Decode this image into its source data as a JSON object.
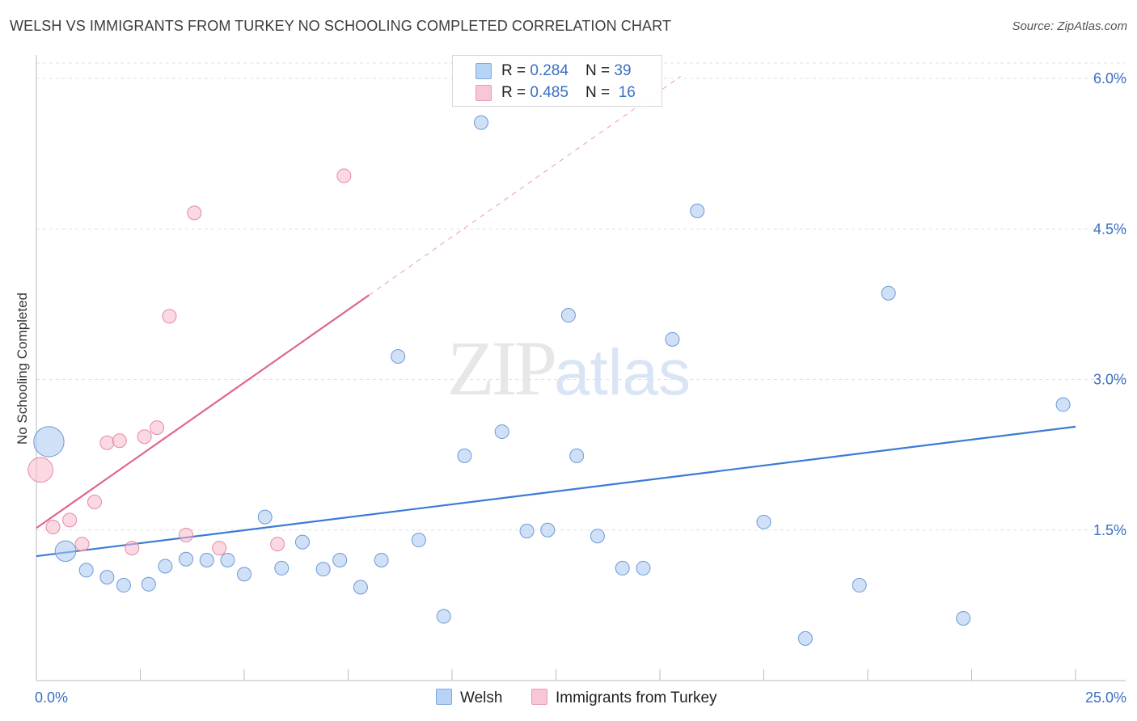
{
  "title": "WELSH VS IMMIGRANTS FROM TURKEY NO SCHOOLING COMPLETED CORRELATION CHART",
  "source": "Source: ZipAtlas.com",
  "watermark": {
    "zip": "ZIP",
    "atlas": "atlas"
  },
  "chart_data": {
    "type": "scatter",
    "title": "WELSH VS IMMIGRANTS FROM TURKEY NO SCHOOLING COMPLETED CORRELATION CHART",
    "ylabel": "No Schooling Completed",
    "xlabel": "",
    "xlim": [
      0,
      25
    ],
    "ylim": [
      0,
      6.2
    ],
    "x_tick_labels": [
      {
        "value": 0,
        "label": "0.0%"
      },
      {
        "value": 25,
        "label": "25.0%"
      }
    ],
    "y_tick_labels": [
      {
        "value": 1.5,
        "label": "1.5%"
      },
      {
        "value": 3.0,
        "label": "3.0%"
      },
      {
        "value": 4.5,
        "label": "4.5%"
      },
      {
        "value": 6.0,
        "label": "6.0%"
      }
    ],
    "grid": true,
    "legend": [
      {
        "name": "Welsh",
        "color": "#a9c8f0",
        "stroke": "#6a9ad8",
        "R": "0.284",
        "N": "39"
      },
      {
        "name": "Immigrants from Turkey",
        "color": "#f7b9cc",
        "stroke": "#e48aa6",
        "R": "0.485",
        "N": "16"
      }
    ],
    "series": [
      {
        "name": "Welsh",
        "color": "#a9c8f0",
        "stroke": "#6a9ad8",
        "trend": {
          "x0": 0,
          "y0": 1.24,
          "x1": 25,
          "y1": 2.53,
          "color": "#3a7bd5"
        },
        "points": [
          {
            "x": 0.3,
            "y": 2.38,
            "s": 2.2
          },
          {
            "x": 0.7,
            "y": 1.29,
            "s": 1.5
          },
          {
            "x": 1.2,
            "y": 1.1,
            "s": 1
          },
          {
            "x": 1.7,
            "y": 1.03,
            "s": 1
          },
          {
            "x": 2.1,
            "y": 0.95,
            "s": 1
          },
          {
            "x": 2.7,
            "y": 0.96,
            "s": 1
          },
          {
            "x": 3.1,
            "y": 1.14,
            "s": 1
          },
          {
            "x": 3.6,
            "y": 1.21,
            "s": 1
          },
          {
            "x": 4.1,
            "y": 1.2,
            "s": 1
          },
          {
            "x": 4.6,
            "y": 1.2,
            "s": 1
          },
          {
            "x": 5.0,
            "y": 1.06,
            "s": 1
          },
          {
            "x": 5.5,
            "y": 1.63,
            "s": 1
          },
          {
            "x": 5.9,
            "y": 1.12,
            "s": 1
          },
          {
            "x": 6.4,
            "y": 1.38,
            "s": 1
          },
          {
            "x": 6.9,
            "y": 1.11,
            "s": 1
          },
          {
            "x": 7.3,
            "y": 1.2,
            "s": 1
          },
          {
            "x": 7.8,
            "y": 0.93,
            "s": 1
          },
          {
            "x": 8.3,
            "y": 1.2,
            "s": 1
          },
          {
            "x": 8.7,
            "y": 3.23,
            "s": 1
          },
          {
            "x": 9.2,
            "y": 1.4,
            "s": 1
          },
          {
            "x": 9.8,
            "y": 0.64,
            "s": 1
          },
          {
            "x": 10.3,
            "y": 2.24,
            "s": 1
          },
          {
            "x": 10.7,
            "y": 5.56,
            "s": 1
          },
          {
            "x": 11.2,
            "y": 2.48,
            "s": 1
          },
          {
            "x": 11.8,
            "y": 1.49,
            "s": 1
          },
          {
            "x": 12.3,
            "y": 1.5,
            "s": 1
          },
          {
            "x": 12.8,
            "y": 3.64,
            "s": 1
          },
          {
            "x": 13.0,
            "y": 2.24,
            "s": 1
          },
          {
            "x": 13.5,
            "y": 1.44,
            "s": 1
          },
          {
            "x": 14.1,
            "y": 1.12,
            "s": 1
          },
          {
            "x": 14.6,
            "y": 1.12,
            "s": 1
          },
          {
            "x": 15.3,
            "y": 3.4,
            "s": 1
          },
          {
            "x": 15.9,
            "y": 4.68,
            "s": 1
          },
          {
            "x": 17.5,
            "y": 1.58,
            "s": 1
          },
          {
            "x": 18.5,
            "y": 0.42,
            "s": 1
          },
          {
            "x": 19.8,
            "y": 0.95,
            "s": 1
          },
          {
            "x": 20.5,
            "y": 3.86,
            "s": 1
          },
          {
            "x": 22.3,
            "y": 0.62,
            "s": 1
          },
          {
            "x": 24.7,
            "y": 2.75,
            "s": 1
          }
        ]
      },
      {
        "name": "Immigrants from Turkey",
        "color": "#f7b9cc",
        "stroke": "#e48aa6",
        "trend": {
          "x0": 0,
          "y0": 1.52,
          "x1": 8.0,
          "y1": 3.84,
          "dash_to_x": 15.5,
          "dash_to_y": 6.02,
          "color": "#e0668e"
        },
        "points": [
          {
            "x": 0.1,
            "y": 2.1,
            "s": 1.8
          },
          {
            "x": 0.4,
            "y": 1.53,
            "s": 1
          },
          {
            "x": 0.8,
            "y": 1.6,
            "s": 1
          },
          {
            "x": 1.1,
            "y": 1.36,
            "s": 1
          },
          {
            "x": 1.4,
            "y": 1.78,
            "s": 1
          },
          {
            "x": 1.7,
            "y": 2.37,
            "s": 1
          },
          {
            "x": 2.0,
            "y": 2.39,
            "s": 1
          },
          {
            "x": 2.3,
            "y": 1.32,
            "s": 1
          },
          {
            "x": 2.6,
            "y": 2.43,
            "s": 1
          },
          {
            "x": 2.9,
            "y": 2.52,
            "s": 1
          },
          {
            "x": 3.2,
            "y": 3.63,
            "s": 1
          },
          {
            "x": 3.6,
            "y": 1.45,
            "s": 1
          },
          {
            "x": 3.8,
            "y": 4.66,
            "s": 1
          },
          {
            "x": 4.4,
            "y": 1.32,
            "s": 1
          },
          {
            "x": 5.8,
            "y": 1.36,
            "s": 1
          },
          {
            "x": 7.4,
            "y": 5.03,
            "s": 1
          }
        ]
      }
    ]
  }
}
